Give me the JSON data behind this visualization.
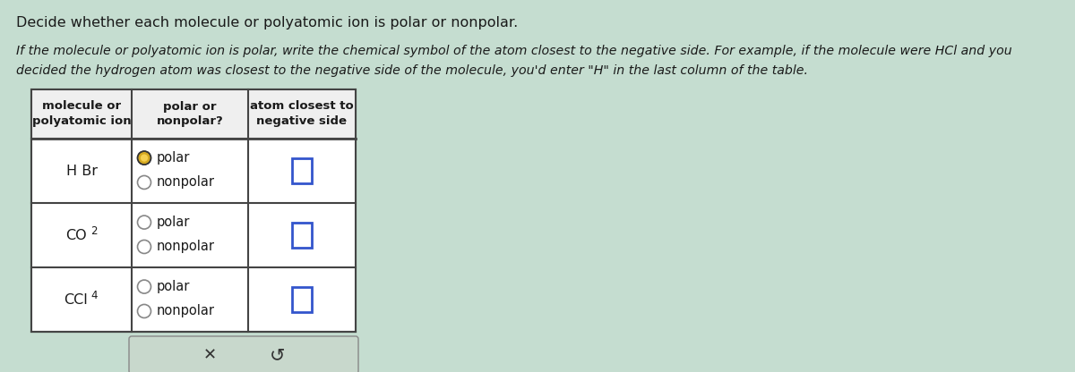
{
  "title1": "Decide whether each molecule or polyatomic ion is polar or nonpolar.",
  "title2_line1": "If the molecule or polyatomic ion is polar, write the chemical symbol of the atom closest to the negative side. For example, if the molecule were HCl and you",
  "title2_line2": "decided the hydrogen atom was closest to the negative side of the molecule, you'd enter \"H\" in the last column of the table.",
  "bg_color": "#c5ddd0",
  "table_bg": "#ffffff",
  "cell_bg_light": "#d8eae0",
  "header_bg": "#e8e8e8",
  "border_color": "#444444",
  "text_color": "#1a1a1a",
  "radio_filled_outer": "#c8a000",
  "radio_filled_inner": "#f0c830",
  "radio_empty_color": "#888888",
  "input_box_color": "#3355cc",
  "button_bg": "#c8d8cc",
  "button_border": "#888888",
  "fig_width": 12.0,
  "fig_height": 4.16,
  "dpi": 100
}
